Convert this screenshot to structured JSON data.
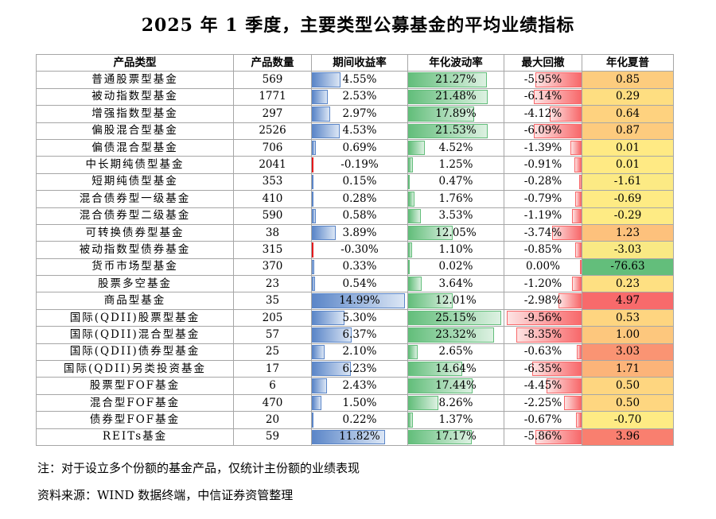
{
  "title": "2025 年 1 季度，主要类型公募基金的平均业绩指标",
  "headers": [
    "产品类型",
    "产品数量",
    "期间收益率",
    "年化波动率",
    "最大回撤",
    "年化夏普"
  ],
  "rows": [
    {
      "name": "普通股票型基金",
      "count": "569",
      "ret": "4.55%",
      "vol": "21.27%",
      "dd": "-5.95%",
      "sharpe": "0.85",
      "ret_v": 4.55,
      "vol_v": 21.27,
      "dd_v": -5.95,
      "sharpe_v": 0.85
    },
    {
      "name": "被动指数型基金",
      "count": "1771",
      "ret": "2.53%",
      "vol": "21.48%",
      "dd": "-6.14%",
      "sharpe": "0.29",
      "ret_v": 2.53,
      "vol_v": 21.48,
      "dd_v": -6.14,
      "sharpe_v": 0.29
    },
    {
      "name": "增强指数型基金",
      "count": "297",
      "ret": "2.97%",
      "vol": "17.89%",
      "dd": "-4.12%",
      "sharpe": "0.64",
      "ret_v": 2.97,
      "vol_v": 17.89,
      "dd_v": -4.12,
      "sharpe_v": 0.64
    },
    {
      "name": "偏股混合型基金",
      "count": "2526",
      "ret": "4.53%",
      "vol": "21.53%",
      "dd": "-6.09%",
      "sharpe": "0.87",
      "ret_v": 4.53,
      "vol_v": 21.53,
      "dd_v": -6.09,
      "sharpe_v": 0.87
    },
    {
      "name": "偏债混合型基金",
      "count": "706",
      "ret": "0.69%",
      "vol": "4.52%",
      "dd": "-1.39%",
      "sharpe": "0.01",
      "ret_v": 0.69,
      "vol_v": 4.52,
      "dd_v": -1.39,
      "sharpe_v": 0.01
    },
    {
      "name": "中长期纯债型基金",
      "count": "2041",
      "ret": "-0.19%",
      "vol": "1.25%",
      "dd": "-0.91%",
      "sharpe": "0.01",
      "ret_v": -0.19,
      "vol_v": 1.25,
      "dd_v": -0.91,
      "sharpe_v": 0.01
    },
    {
      "name": "短期纯债型基金",
      "count": "353",
      "ret": "0.15%",
      "vol": "0.47%",
      "dd": "-0.28%",
      "sharpe": "-1.61",
      "ret_v": 0.15,
      "vol_v": 0.47,
      "dd_v": -0.28,
      "sharpe_v": -1.61
    },
    {
      "name": "混合债券型一级基金",
      "count": "410",
      "ret": "0.28%",
      "vol": "1.76%",
      "dd": "-0.79%",
      "sharpe": "-0.69",
      "ret_v": 0.28,
      "vol_v": 1.76,
      "dd_v": -0.79,
      "sharpe_v": -0.69
    },
    {
      "name": "混合债券型二级基金",
      "count": "590",
      "ret": "0.58%",
      "vol": "3.53%",
      "dd": "-1.19%",
      "sharpe": "-0.29",
      "ret_v": 0.58,
      "vol_v": 3.53,
      "dd_v": -1.19,
      "sharpe_v": -0.29
    },
    {
      "name": "可转换债券型基金",
      "count": "38",
      "ret": "3.89%",
      "vol": "12.05%",
      "dd": "-3.74%",
      "sharpe": "1.23",
      "ret_v": 3.89,
      "vol_v": 12.05,
      "dd_v": -3.74,
      "sharpe_v": 1.23
    },
    {
      "name": "被动指数型债券基金",
      "count": "315",
      "ret": "-0.30%",
      "vol": "1.10%",
      "dd": "-0.85%",
      "sharpe": "-3.03",
      "ret_v": -0.3,
      "vol_v": 1.1,
      "dd_v": -0.85,
      "sharpe_v": -3.03
    },
    {
      "name": "货币市场型基金",
      "count": "370",
      "ret": "0.33%",
      "vol": "0.02%",
      "dd": "0.00%",
      "sharpe": "-76.63",
      "ret_v": 0.33,
      "vol_v": 0.02,
      "dd_v": 0.0,
      "sharpe_v": -76.63
    },
    {
      "name": "股票多空基金",
      "count": "23",
      "ret": "0.54%",
      "vol": "3.64%",
      "dd": "-1.20%",
      "sharpe": "0.23",
      "ret_v": 0.54,
      "vol_v": 3.64,
      "dd_v": -1.2,
      "sharpe_v": 0.23
    },
    {
      "name": "商品型基金",
      "count": "35",
      "ret": "14.99%",
      "vol": "12.01%",
      "dd": "-2.98%",
      "sharpe": "4.97",
      "ret_v": 14.99,
      "vol_v": 12.01,
      "dd_v": -2.98,
      "sharpe_v": 4.97
    },
    {
      "name": "国际(QDII)股票型基金",
      "count": "205",
      "ret": "5.30%",
      "vol": "25.15%",
      "dd": "-9.56%",
      "sharpe": "0.53",
      "ret_v": 5.3,
      "vol_v": 25.15,
      "dd_v": -9.56,
      "sharpe_v": 0.53
    },
    {
      "name": "国际(QDII)混合型基金",
      "count": "57",
      "ret": "6.37%",
      "vol": "23.32%",
      "dd": "-8.35%",
      "sharpe": "1.00",
      "ret_v": 6.37,
      "vol_v": 23.32,
      "dd_v": -8.35,
      "sharpe_v": 1.0
    },
    {
      "name": "国际(QDII)债券型基金",
      "count": "25",
      "ret": "2.10%",
      "vol": "2.65%",
      "dd": "-0.63%",
      "sharpe": "3.03",
      "ret_v": 2.1,
      "vol_v": 2.65,
      "dd_v": -0.63,
      "sharpe_v": 3.03
    },
    {
      "name": "国际(QDII)另类投资基金",
      "count": "17",
      "ret": "6.23%",
      "vol": "14.64%",
      "dd": "-6.35%",
      "sharpe": "1.71",
      "ret_v": 6.23,
      "vol_v": 14.64,
      "dd_v": -6.35,
      "sharpe_v": 1.71
    },
    {
      "name": "股票型FOF基金",
      "count": "6",
      "ret": "2.43%",
      "vol": "17.44%",
      "dd": "-4.45%",
      "sharpe": "0.50",
      "ret_v": 2.43,
      "vol_v": 17.44,
      "dd_v": -4.45,
      "sharpe_v": 0.5
    },
    {
      "name": "混合型FOF基金",
      "count": "470",
      "ret": "1.50%",
      "vol": "8.26%",
      "dd": "-2.25%",
      "sharpe": "0.50",
      "ret_v": 1.5,
      "vol_v": 8.26,
      "dd_v": -2.25,
      "sharpe_v": 0.5
    },
    {
      "name": "债券型FOF基金",
      "count": "20",
      "ret": "0.22%",
      "vol": "1.37%",
      "dd": "-0.67%",
      "sharpe": "-0.70",
      "ret_v": 0.22,
      "vol_v": 1.37,
      "dd_v": -0.67,
      "sharpe_v": -0.7
    },
    {
      "name": "REITs基金",
      "count": "59",
      "ret": "11.82%",
      "vol": "17.17%",
      "dd": "-5.86%",
      "sharpe": "3.96",
      "ret_v": 11.82,
      "vol_v": 17.17,
      "dd_v": -5.86,
      "sharpe_v": 3.96
    }
  ],
  "sharpe_colors": {
    "high": "#f8696b",
    "mid": "#ffeb84",
    "low": "#63be7b"
  },
  "note": "注：对于设立多个份额的基金产品，仅统计主份额的业绩表现",
  "source": "资料来源：WIND 数据终端，中信证券资管整理"
}
